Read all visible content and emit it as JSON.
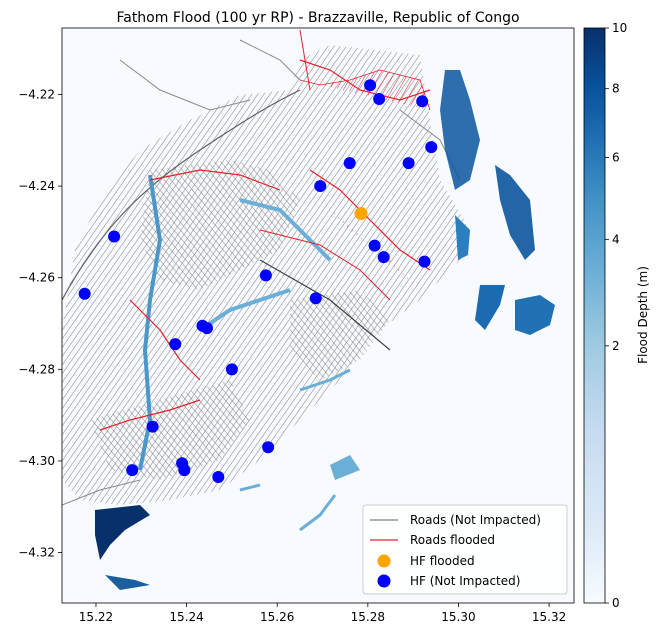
{
  "chart_data": {
    "type": "map",
    "title": "Fathom Flood (100 yr RP) - Brazzaville, Republic of Congo",
    "x_ticks": [
      15.22,
      15.24,
      15.26,
      15.28,
      15.3,
      15.32
    ],
    "x_tick_labels": [
      "15.22",
      "15.24",
      "15.26",
      "15.28",
      "15.30",
      "15.32"
    ],
    "xlim": [
      15.2125,
      15.3255
    ],
    "y_ticks": [
      -4.22,
      -4.24,
      -4.26,
      -4.28,
      -4.3,
      -4.32
    ],
    "y_tick_labels": [
      "−4.22",
      "−4.24",
      "−4.26",
      "−4.28",
      "−4.30",
      "−4.32"
    ],
    "ylim": [
      -4.331,
      -4.2055
    ],
    "colorbar": {
      "label": "Flood Depth (m)",
      "scale": "power",
      "range": [
        0,
        10
      ],
      "ticks": [
        0,
        2,
        4,
        6,
        8,
        10
      ],
      "tick_labels": [
        "0",
        "2",
        "4",
        "6",
        "8",
        "10"
      ],
      "colors": [
        "#f7fbff",
        "#c6dbef",
        "#6baed6",
        "#2171b5",
        "#08306b"
      ]
    },
    "colors": {
      "roads_not_impacted": "#808080",
      "roads_flooded": "#e8202a",
      "hf_flooded": "#ffa500",
      "hf_not_impacted": "#0000ff",
      "background": "#f7fbff"
    },
    "legend": {
      "placement": "lower-right",
      "entries": [
        {
          "label": "Roads (Not Impacted)",
          "marker": "line",
          "color": "#808080"
        },
        {
          "label": "Roads flooded",
          "marker": "line",
          "color": "#e8202a"
        },
        {
          "label": "HF flooded",
          "marker": "circle",
          "color": "#ffa500"
        },
        {
          "label": "HF (Not Impacted)",
          "marker": "circle",
          "color": "#0000ff"
        }
      ]
    },
    "hf_flooded": [
      {
        "x": 15.2785,
        "y": -4.246
      }
    ],
    "hf_not_impacted": [
      {
        "x": 15.2805,
        "y": -4.218
      },
      {
        "x": 15.2825,
        "y": -4.221
      },
      {
        "x": 15.292,
        "y": -4.2215
      },
      {
        "x": 15.294,
        "y": -4.2315
      },
      {
        "x": 15.289,
        "y": -4.235
      },
      {
        "x": 15.276,
        "y": -4.235
      },
      {
        "x": 15.2695,
        "y": -4.24
      },
      {
        "x": 15.224,
        "y": -4.251
      },
      {
        "x": 15.2815,
        "y": -4.253
      },
      {
        "x": 15.2835,
        "y": -4.2555
      },
      {
        "x": 15.2925,
        "y": -4.2565
      },
      {
        "x": 15.2575,
        "y": -4.2595
      },
      {
        "x": 15.2175,
        "y": -4.2635
      },
      {
        "x": 15.2685,
        "y": -4.2645
      },
      {
        "x": 15.2435,
        "y": -4.2705
      },
      {
        "x": 15.2445,
        "y": -4.271
      },
      {
        "x": 15.2375,
        "y": -4.2745
      },
      {
        "x": 15.25,
        "y": -4.28
      },
      {
        "x": 15.2325,
        "y": -4.2925
      },
      {
        "x": 15.258,
        "y": -4.297
      },
      {
        "x": 15.239,
        "y": -4.3005
      },
      {
        "x": 15.2395,
        "y": -4.302
      },
      {
        "x": 15.228,
        "y": -4.302
      },
      {
        "x": 15.247,
        "y": -4.3035
      }
    ]
  }
}
